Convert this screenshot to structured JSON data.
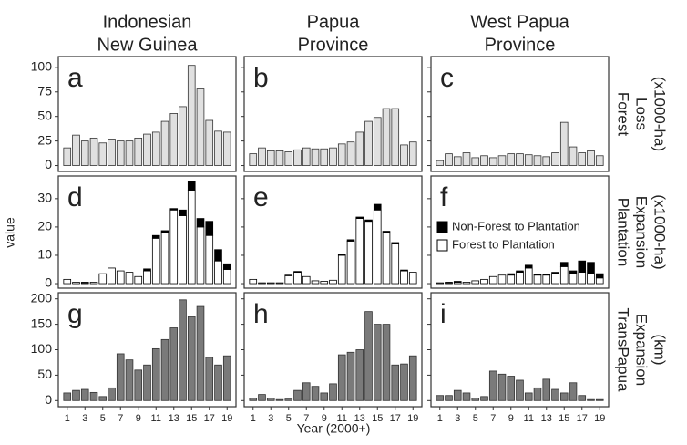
{
  "columns": [
    [
      "Indonesian",
      "New Guinea"
    ],
    [
      "Papua",
      "Province"
    ],
    [
      "West Papua",
      "Province"
    ]
  ],
  "rows": [
    [
      "Forest",
      "Loss",
      "(x1000-ha)"
    ],
    [
      "Plantation",
      "Expansion",
      "(x1000-ha)"
    ],
    [
      "TransPapua",
      "Expansion",
      "(km)"
    ]
  ],
  "xlabel": "Year (2000+)",
  "ylabel": "value",
  "chart_data": [
    {
      "type": "bar",
      "annotation": "a",
      "color": "#e0e0e0",
      "x": [
        1,
        2,
        3,
        4,
        5,
        6,
        7,
        8,
        9,
        10,
        11,
        12,
        13,
        14,
        15,
        16,
        17,
        18,
        19
      ],
      "xlim": [
        0,
        20
      ],
      "ylim": [
        -6,
        111
      ],
      "yticks": [
        0,
        25,
        50,
        75,
        100
      ],
      "values": [
        18,
        31,
        25,
        28,
        23,
        27,
        25,
        25,
        28,
        32,
        34,
        45,
        53,
        60,
        102,
        78,
        46,
        35,
        34
      ]
    },
    {
      "type": "bar",
      "annotation": "b",
      "color": "#e0e0e0",
      "x": [
        1,
        2,
        3,
        4,
        5,
        6,
        7,
        8,
        9,
        10,
        11,
        12,
        13,
        14,
        15,
        16,
        17,
        18,
        19
      ],
      "xlim": [
        0,
        20
      ],
      "ylim": [
        -6,
        111
      ],
      "values": [
        12,
        18,
        15,
        15,
        14,
        16,
        18,
        17,
        17,
        18,
        22,
        24,
        34,
        45,
        49,
        58,
        58,
        21,
        24
      ]
    },
    {
      "type": "bar",
      "annotation": "c",
      "color": "#e0e0e0",
      "x": [
        1,
        2,
        3,
        4,
        5,
        6,
        7,
        8,
        9,
        10,
        11,
        12,
        13,
        14,
        15,
        16,
        17,
        18,
        19
      ],
      "xlim": [
        0,
        20
      ],
      "ylim": [
        -6,
        111
      ],
      "values": [
        5,
        12,
        9,
        13,
        8,
        10,
        8,
        10,
        12,
        12,
        11,
        10,
        9,
        13,
        44,
        19,
        13,
        15,
        10
      ]
    },
    {
      "type": "stacked_bar",
      "annotation": "d",
      "x": [
        1,
        2,
        3,
        4,
        5,
        6,
        7,
        8,
        9,
        10,
        11,
        12,
        13,
        14,
        15,
        16,
        17,
        18,
        19
      ],
      "xlim": [
        0,
        20
      ],
      "ylim": [
        -1.6,
        38
      ],
      "yticks": [
        0,
        10,
        20,
        30
      ],
      "series": [
        {
          "color": "#ffffff",
          "values": [
            1.5,
            0.5,
            0.3,
            0.5,
            3.5,
            5.5,
            4.5,
            4,
            2.5,
            4.5,
            16,
            18,
            26,
            24,
            33,
            20,
            17,
            8,
            5
          ]
        },
        {
          "color": "#000000",
          "values": [
            0,
            0,
            0.2,
            0,
            0,
            0,
            0,
            0,
            0,
            0.7,
            1,
            0.7,
            0.5,
            2,
            3,
            3,
            5,
            4,
            2
          ]
        }
      ]
    },
    {
      "type": "stacked_bar",
      "annotation": "e",
      "x": [
        1,
        2,
        3,
        4,
        5,
        6,
        7,
        8,
        9,
        10,
        11,
        12,
        13,
        14,
        15,
        16,
        17,
        18,
        19
      ],
      "xlim": [
        0,
        20
      ],
      "ylim": [
        -1.6,
        38
      ],
      "series": [
        {
          "color": "#ffffff",
          "values": [
            1.5,
            0.3,
            0.3,
            0.3,
            2.8,
            4,
            2.5,
            1,
            0.8,
            1.2,
            10,
            15,
            23,
            22,
            26,
            18,
            14,
            4.5,
            4
          ]
        },
        {
          "color": "#000000",
          "values": [
            0,
            0,
            0,
            0,
            0.2,
            0.3,
            0,
            0,
            0,
            0,
            0.3,
            0.5,
            0.5,
            0.5,
            2,
            0.5,
            0.5,
            0.3,
            0
          ]
        }
      ]
    },
    {
      "type": "stacked_bar",
      "annotation": "f",
      "x": [
        1,
        2,
        3,
        4,
        5,
        6,
        7,
        8,
        9,
        10,
        11,
        12,
        13,
        14,
        15,
        16,
        17,
        18,
        19
      ],
      "xlim": [
        0,
        20
      ],
      "ylim": [
        -1.6,
        38
      ],
      "legend": "left",
      "series": [
        {
          "name": "Forest to Plantation",
          "color": "#ffffff",
          "values": [
            0.3,
            0.3,
            0.5,
            0.5,
            1,
            1.5,
            2.5,
            3,
            3,
            4,
            5.5,
            3,
            3,
            3.5,
            6,
            3.5,
            4,
            3.5,
            2
          ]
        },
        {
          "name": "Non-Forest to Plantation",
          "color": "#000000",
          "values": [
            0,
            0.2,
            0.3,
            0,
            0,
            0,
            0,
            0,
            0.5,
            0.5,
            1,
            0.3,
            0.3,
            0.5,
            1.5,
            1,
            4,
            4,
            1.5
          ]
        }
      ]
    },
    {
      "type": "bar",
      "annotation": "g",
      "color": "#7a7a7a",
      "x": [
        1,
        2,
        3,
        4,
        5,
        6,
        7,
        8,
        9,
        10,
        11,
        12,
        13,
        14,
        15,
        16,
        17,
        18,
        19
      ],
      "xlim": [
        0,
        20
      ],
      "xticks": [
        1,
        3,
        5,
        7,
        9,
        11,
        13,
        15,
        17,
        19
      ],
      "ylim": [
        -12,
        212
      ],
      "yticks": [
        0,
        50,
        100,
        150,
        200
      ],
      "values": [
        15,
        20,
        22,
        16,
        8,
        25,
        92,
        80,
        60,
        70,
        102,
        120,
        143,
        198,
        165,
        185,
        85,
        70,
        88
      ]
    },
    {
      "type": "bar",
      "annotation": "h",
      "color": "#7a7a7a",
      "x": [
        1,
        2,
        3,
        4,
        5,
        6,
        7,
        8,
        9,
        10,
        11,
        12,
        13,
        14,
        15,
        16,
        17,
        18,
        19
      ],
      "xlim": [
        0,
        20
      ],
      "xticks": [
        1,
        3,
        5,
        7,
        9,
        11,
        13,
        15,
        17,
        19
      ],
      "ylim": [
        -12,
        212
      ],
      "values": [
        5,
        12,
        5,
        2,
        3,
        20,
        35,
        28,
        15,
        33,
        90,
        95,
        100,
        175,
        150,
        150,
        70,
        72,
        88
      ]
    },
    {
      "type": "bar",
      "annotation": "i",
      "color": "#7a7a7a",
      "x": [
        1,
        2,
        3,
        4,
        5,
        6,
        7,
        8,
        9,
        10,
        11,
        12,
        13,
        14,
        15,
        16,
        17,
        18,
        19
      ],
      "xlim": [
        0,
        20
      ],
      "xticks": [
        1,
        3,
        5,
        7,
        9,
        11,
        13,
        15,
        17,
        19
      ],
      "ylim": [
        -12,
        212
      ],
      "values": [
        10,
        10,
        20,
        15,
        5,
        8,
        58,
        52,
        48,
        40,
        15,
        25,
        42,
        22,
        15,
        35,
        10,
        2,
        2
      ]
    }
  ]
}
